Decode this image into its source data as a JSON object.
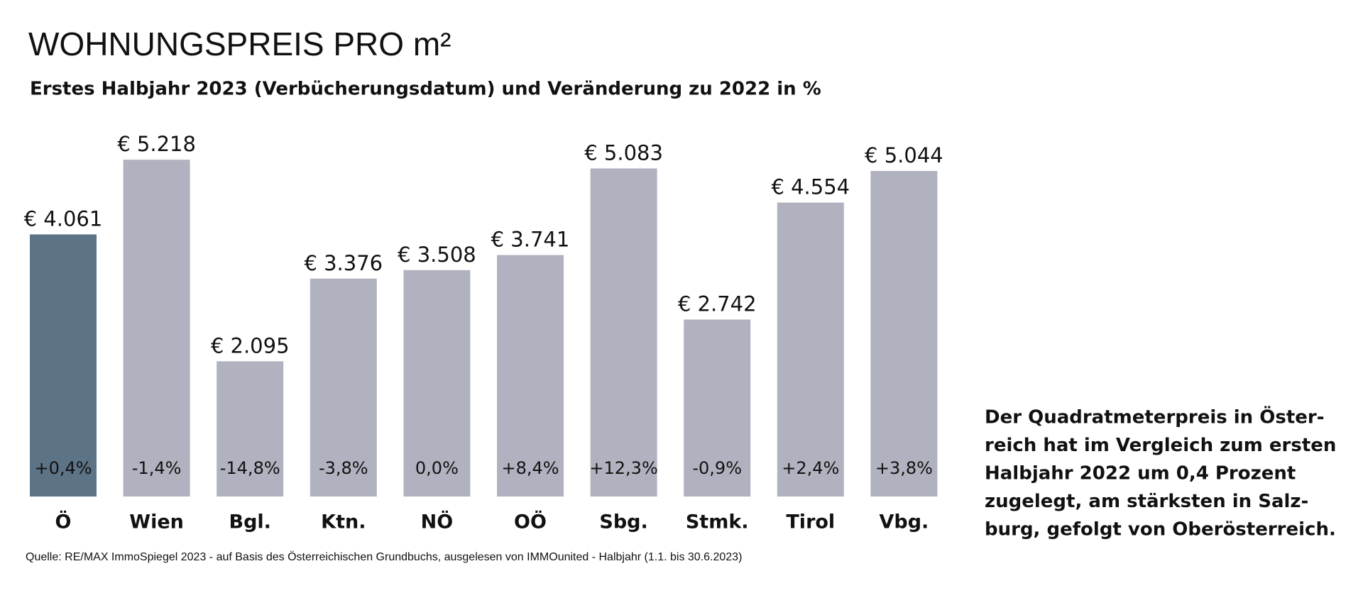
{
  "chart_data": {
    "type": "bar",
    "title": "WOHNUNGSPREIS PRO m²",
    "subtitle": "Erstes Halbjahr 2023 (Verbücherungsdatum) und Veränderung zu 2022 in %",
    "categories": [
      "Ö",
      "Wien",
      "Bgl.",
      "Ktn.",
      "NÖ",
      "OÖ",
      "Sbg.",
      "Stmk.",
      "Tirol",
      "Vbg."
    ],
    "values": [
      4061,
      5218,
      2095,
      3376,
      3508,
      3741,
      5083,
      2742,
      4554,
      5044
    ],
    "value_labels": [
      "€ 4.061",
      "€ 5.218",
      "€ 2.095",
      "€ 3.376",
      "€ 3.508",
      "€ 3.741",
      "€ 5.083",
      "€ 2.742",
      "€ 4.554",
      "€ 5.044"
    ],
    "change_labels": [
      "+0,4%",
      "-1,4%",
      "-14,8%",
      "-3,8%",
      "0,0%",
      "+8,4%",
      "+12,3%",
      "-0,9%",
      "+2,4%",
      "+3,8%"
    ],
    "colors": [
      "#5d7386",
      "#b0b2bf",
      "#b0b2bf",
      "#b0b2bf",
      "#b0b2bf",
      "#b0b2bf",
      "#b0b2bf",
      "#b0b2bf",
      "#b0b2bf",
      "#b0b2bf"
    ],
    "note": [
      "Der Quadratmeterpreis in Öster-",
      "reich hat im Vergleich zum ersten",
      "Halbjahr 2022 um 0,4 Prozent",
      "zugelegt, am stärksten in Salz-",
      "burg, gefolgt von Oberösterreich."
    ],
    "source": "Quelle: RE/MAX ImmoSpiegel 2023 - auf Basis des Österreichischen Grundbuchs, ausgelesen von IMMOunited - Halbjahr (1.1. bis 30.6.2023)"
  }
}
